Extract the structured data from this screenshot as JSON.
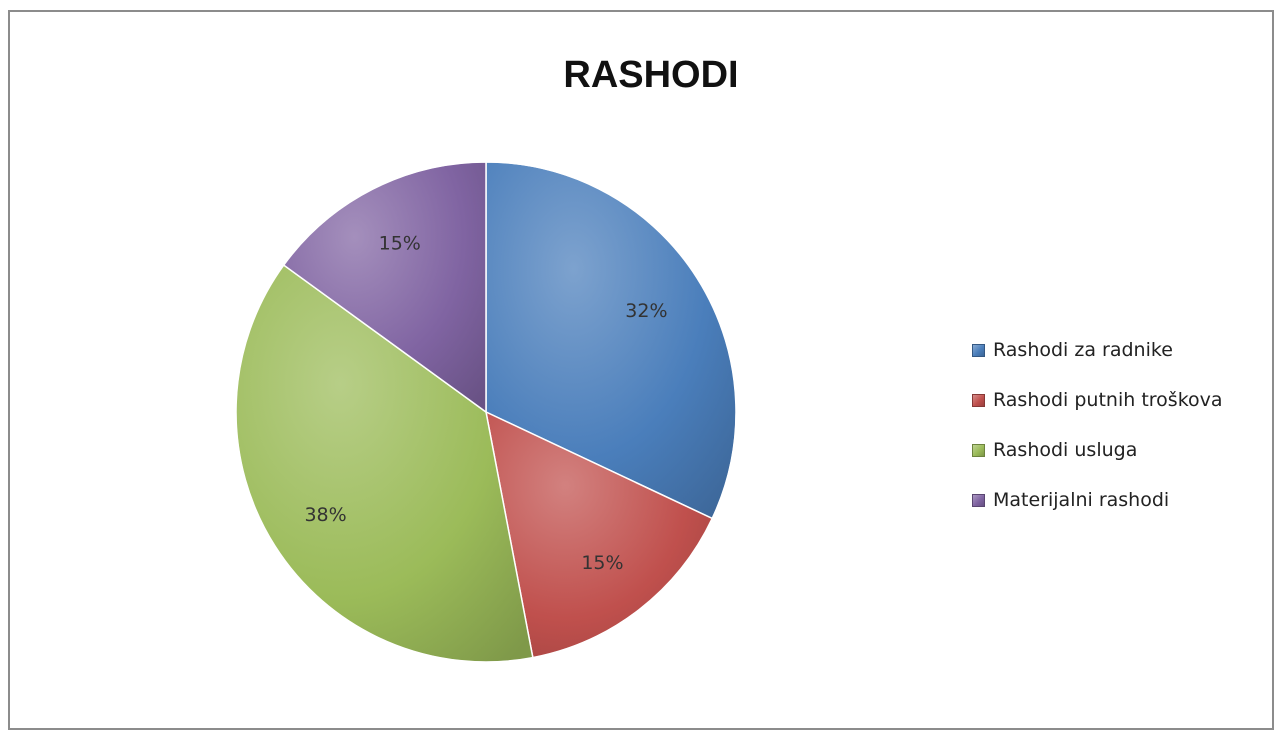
{
  "chart_data": {
    "type": "pie",
    "title": "RASHODI",
    "categories": [
      "Rashodi za radnike",
      "Rashodi putnih troškova",
      "Rashodi usluga",
      "Materijalni rashodi"
    ],
    "values": [
      32,
      15,
      38,
      15
    ],
    "labels": [
      "32%",
      "15%",
      "38%",
      "15%"
    ],
    "colors": [
      "#4a7ebb",
      "#c0504d",
      "#9bbb59",
      "#8064a2"
    ],
    "legend": "right"
  }
}
